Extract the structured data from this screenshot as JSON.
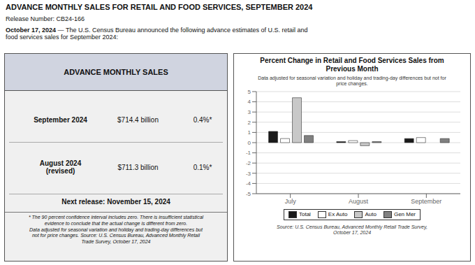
{
  "chart_data": {
    "type": "bar",
    "title": "Percent Change in Retail and Food Services Sales from\nPrevious Month",
    "subtitle": "Data adjusted for seasonal variation and holiday and trading-day differences but not for\nprice changes.",
    "categories": [
      "July",
      "August",
      "September"
    ],
    "series": [
      {
        "name": "Total",
        "color": "#1a1a1a",
        "values": [
          1.1,
          0.1,
          0.4
        ]
      },
      {
        "name": "Ex Auto",
        "color": "#ffffff",
        "values": [
          0.4,
          0.2,
          0.5
        ]
      },
      {
        "name": "Auto",
        "color": "#c8c8c8",
        "values": [
          4.4,
          -0.3,
          0.0
        ]
      },
      {
        "name": "Gen Mer",
        "color": "#808080",
        "values": [
          0.7,
          0.1,
          0.4
        ]
      }
    ],
    "ylim": [
      -5,
      5
    ],
    "yticks": [
      -5,
      -4,
      -3,
      -2,
      -1,
      0,
      1,
      2,
      3,
      4,
      5
    ],
    "grid": true,
    "legend": "bottom",
    "annotations": [
      "ADVANCE MONTHLY SALES FOR RETAIL AND FOOD SERVICES, SEPTEMBER 2024",
      "Release Number: CB24-166",
      "October 17, 2024",
      " — The U.S. Census Bureau announced the following advance estimates of U.S. retail and\nfood services sales for September 2024:",
      "ADVANCE MONTHLY SALES",
      "September 2024",
      "$714.4 billion",
      "0.4%*",
      "August 2024\n(revised)",
      "$711.3 billion",
      "0.1%*",
      "Next release: November 15, 2024",
      "* The 90 percent confidence interval includes zero. There is insufficient statistical\nevidence to conclude that the actual change is different from zero.\nData adjusted for seasonal variation and holiday and trading-day differences but\nnot for price changes. Source: U.S. Census Bureau, Advanced Monthly Retail\nTrade Survey, October 17, 2024",
      "Source: U.S. Census Bureau, Advanced Monthly Retail Trade Survey,\nOctober 17, 2024"
    ]
  }
}
